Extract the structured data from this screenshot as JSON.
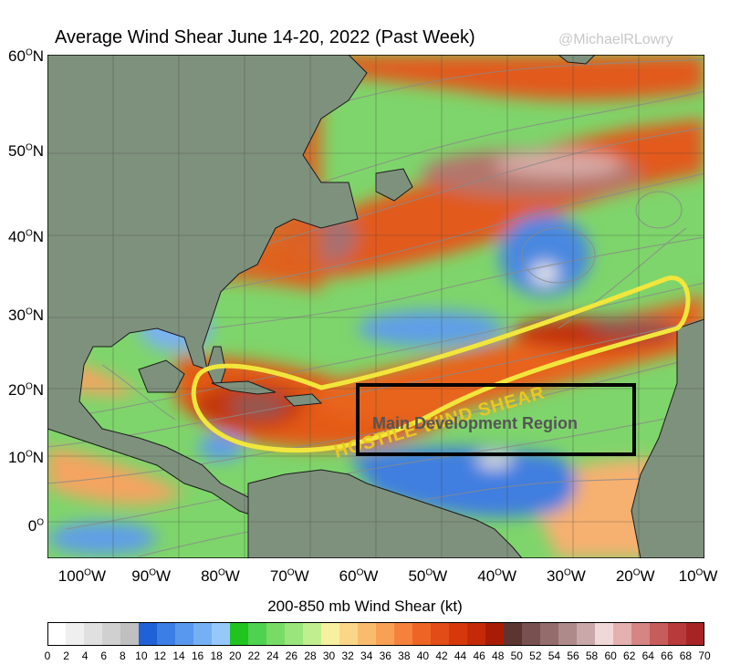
{
  "title": "Average Wind Shear June 14-20, 2022 (Past Week)",
  "credit": "@MichaelRLowry",
  "lat_labels": [
    {
      "sup": "O",
      "text": "60",
      "suffix": "N",
      "deg": 60
    },
    {
      "sup": "O",
      "text": "50",
      "suffix": "N",
      "deg": 50
    },
    {
      "sup": "O",
      "text": "40",
      "suffix": "N",
      "deg": 40
    },
    {
      "sup": "O",
      "text": "30",
      "suffix": "N",
      "deg": 30
    },
    {
      "sup": "O",
      "text": "20",
      "suffix": "N",
      "deg": 20
    },
    {
      "sup": "O",
      "text": "10",
      "suffix": "N",
      "deg": 10
    },
    {
      "sup": "O",
      "text": "0",
      "suffix": "",
      "deg": 0
    }
  ],
  "lon_labels": [
    {
      "text": "100",
      "suffix": "W",
      "deg": -100
    },
    {
      "text": "90",
      "suffix": "W",
      "deg": -90
    },
    {
      "text": "80",
      "suffix": "W",
      "deg": -80
    },
    {
      "text": "70",
      "suffix": "W",
      "deg": -70
    },
    {
      "text": "60",
      "suffix": "W",
      "deg": -60
    },
    {
      "text": "50",
      "suffix": "W",
      "deg": -50
    },
    {
      "text": "40",
      "suffix": "W",
      "deg": -40
    },
    {
      "text": "30",
      "suffix": "W",
      "deg": -30
    },
    {
      "text": "20",
      "suffix": "W",
      "deg": -20
    },
    {
      "text": "10",
      "suffix": "W",
      "deg": -10
    }
  ],
  "annotations": {
    "hostile": "HOSTILE WIND SHEAR",
    "mdr": "Main Development Region"
  },
  "colorbar": {
    "label": "200-850 mb Wind Shear (kt)",
    "ticks": [
      "0",
      "2",
      "4",
      "6",
      "8",
      "10",
      "12",
      "14",
      "16",
      "18",
      "20",
      "22",
      "24",
      "26",
      "28",
      "30",
      "32",
      "34",
      "36",
      "38",
      "40",
      "42",
      "44",
      "46",
      "48",
      "50",
      "52",
      "54",
      "56",
      "58",
      "60",
      "62",
      "64",
      "66",
      "68",
      "70"
    ],
    "colors": [
      "#ffffff",
      "#efefef",
      "#e0e0e0",
      "#d0d0d0",
      "#c0c0c0",
      "#1f62d8",
      "#3a7ee6",
      "#5898ee",
      "#76b0f4",
      "#96c8fa",
      "#1fc41f",
      "#4fd24f",
      "#76dc66",
      "#9ae57c",
      "#c1ee8e",
      "#f6f0a0",
      "#fbd688",
      "#f9bc6e",
      "#f8a054",
      "#f4823c",
      "#ee6424",
      "#e24c16",
      "#d6380c",
      "#c42a08",
      "#a81c06",
      "#5c3430",
      "#785050",
      "#946c6c",
      "#ae8a8a",
      "#c8a8a8",
      "#f0d8d8",
      "#e4b0b0",
      "#d68484",
      "#c85c5c",
      "#b83a3a",
      "#a82424"
    ]
  },
  "colors": {
    "land": "#7e917d",
    "mdr_box": "#000000",
    "hostile_outline": "#f2e63c",
    "hostile_text": "#e8c822"
  }
}
